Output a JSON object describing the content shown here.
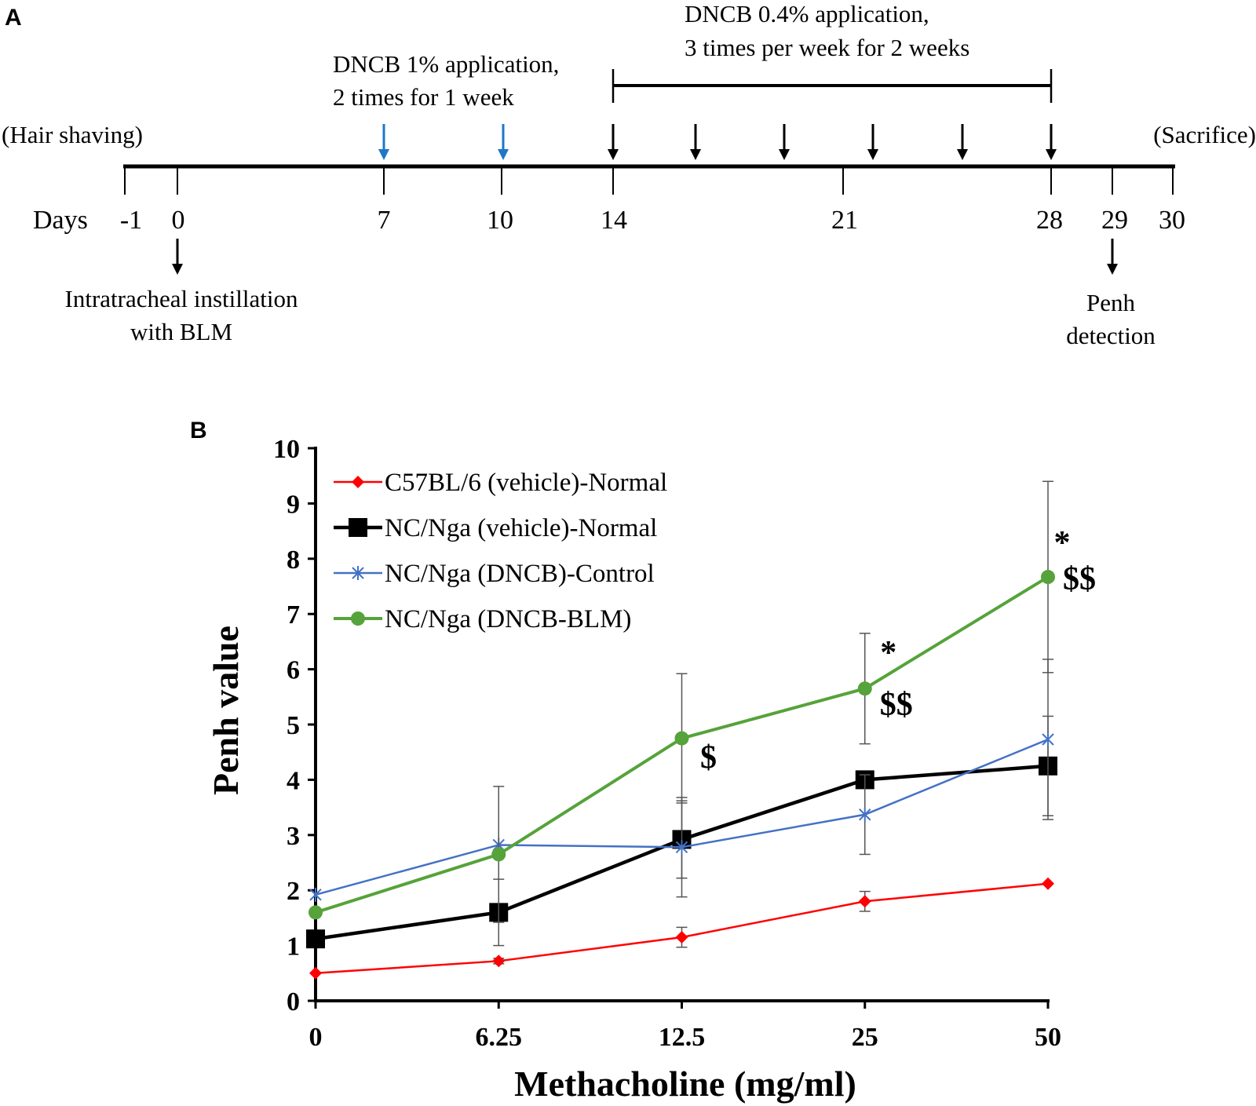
{
  "panel_a": {
    "label": "A",
    "days_label": "Days",
    "days": [
      "-1",
      "0",
      "7",
      "10",
      "14",
      "21",
      "28",
      "29",
      "30"
    ],
    "hair_shaving": "(Hair shaving)",
    "sacrifice": "(Sacrifice)",
    "dncb1_line1": "DNCB 1% application,",
    "dncb1_line2": "2 times for 1 week",
    "dncb04_line1": "DNCB 0.4% application,",
    "dncb04_line2": "3 times per week for 2 weeks",
    "blm_line1": "Intratracheal instillation",
    "blm_line2": "with BLM",
    "penh_line1": "Penh",
    "penh_line2": "detection",
    "colors": {
      "blue_arrow": "#1f77c8",
      "black": "#000000"
    }
  },
  "chart_data": {
    "type": "line",
    "panel_label": "B",
    "title": "",
    "xlabel": "Methacholine (mg/ml)",
    "ylabel": "Penh value",
    "categories": [
      "0",
      "6.25",
      "12.5",
      "25",
      "50"
    ],
    "ylim": [
      0,
      10
    ],
    "yticks": [
      "0",
      "1",
      "2",
      "3",
      "4",
      "5",
      "6",
      "7",
      "8",
      "9",
      "10"
    ],
    "legend_position": "top-left",
    "series": [
      {
        "name": "C57BL/6 (vehicle)-Normal",
        "color": "#ff0000",
        "marker": "diamond",
        "values": [
          0.5,
          0.72,
          1.15,
          1.8,
          2.12
        ],
        "errors": [
          0,
          0.05,
          0.18,
          0.18,
          0
        ]
      },
      {
        "name": "NC/Nga (vehicle)-Normal",
        "color": "#000000",
        "marker": "square",
        "values": [
          1.12,
          1.6,
          2.92,
          4.0,
          4.25
        ],
        "errors": [
          0,
          0.6,
          0.7,
          0,
          0.9
        ]
      },
      {
        "name": "NC/Nga (DNCB)-Control",
        "color": "#4472c4",
        "marker": "star",
        "values": [
          1.92,
          2.82,
          2.78,
          3.37,
          4.73
        ],
        "errors": [
          0,
          0,
          0.9,
          0.72,
          1.45
        ]
      },
      {
        "name": "NC/Nga (DNCB-BLM)",
        "color": "#55a33a",
        "marker": "circle",
        "values": [
          1.6,
          2.65,
          4.75,
          5.65,
          7.67
        ],
        "errors": [
          0,
          1.23,
          1.17,
          1.0,
          1.73
        ]
      }
    ],
    "annotations": [
      {
        "text": "$",
        "category": "12.5"
      },
      {
        "text": "*",
        "category": "25"
      },
      {
        "text": "$$",
        "category": "25"
      },
      {
        "text": "*",
        "category": "50"
      },
      {
        "text": "$$",
        "category": "50"
      }
    ]
  }
}
